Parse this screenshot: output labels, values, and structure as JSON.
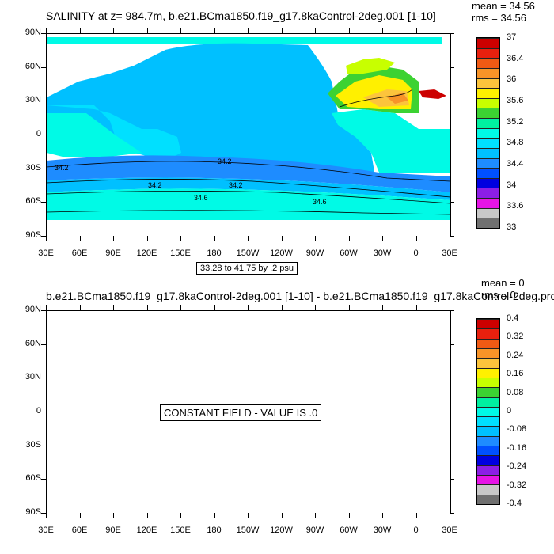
{
  "panel1": {
    "title": "SALINITY at z= 984.7m, b.e21.BCma1850.f19_g17.8kaControl-2deg.001 [1-10]",
    "mean": "mean = 34.56",
    "rms": "rms = 34.56",
    "subtitle": "33.28 to 41.75 by .2 psu",
    "lat_labels": [
      "90N",
      "60N",
      "30N",
      "0",
      "30S",
      "60S",
      "90S"
    ],
    "lon_labels": [
      "30E",
      "60E",
      "90E",
      "120E",
      "150E",
      "180",
      "150W",
      "120W",
      "90W",
      "60W",
      "30W",
      "0",
      "30E"
    ],
    "contour_labels": [
      "34.2",
      "34.2",
      "34.2",
      "34.2",
      "34.6",
      "34.6"
    ],
    "colorbar": {
      "labels": [
        "37",
        "36.4",
        "36",
        "35.6",
        "35.2",
        "34.8",
        "34.4",
        "34",
        "33.6",
        "33"
      ],
      "colors": [
        "#cc0000",
        "#e8200e",
        "#f05a14",
        "#f89428",
        "#fcc43c",
        "#fff000",
        "#c8ff00",
        "#3cd232",
        "#00f0a0",
        "#00fae6",
        "#00e0ff",
        "#00c0ff",
        "#1e8cff",
        "#0050ff",
        "#0000e0",
        "#8c1ee6",
        "#e614e6",
        "#c8c8c8",
        "#707070"
      ]
    }
  },
  "panel2": {
    "title": "b.e21.BCma1850.f19_g17.8kaControl-2deg.001 [1-10] - b.e21.BCma1850.f19_g17.8kaControl-2deg.pro",
    "mean": "mean = 0",
    "rms": "rms = 0",
    "constant_text": "CONSTANT FIELD - VALUE IS .0",
    "lat_labels": [
      "90N",
      "60N",
      "30N",
      "0",
      "30S",
      "60S",
      "90S"
    ],
    "lon_labels": [
      "30E",
      "60E",
      "90E",
      "120E",
      "150E",
      "180",
      "150W",
      "120W",
      "90W",
      "60W",
      "30W",
      "0",
      "30E"
    ],
    "colorbar": {
      "labels": [
        "0.4",
        "0.32",
        "0.24",
        "0.16",
        "0.08",
        "0",
        "-0.08",
        "-0.16",
        "-0.24",
        "-0.32",
        "-0.4"
      ],
      "colors": [
        "#cc0000",
        "#e8200e",
        "#f05a14",
        "#f89428",
        "#fcc43c",
        "#fff000",
        "#c8ff00",
        "#3cd232",
        "#00f0a0",
        "#00fae6",
        "#00e0ff",
        "#00c0ff",
        "#1e8cff",
        "#0050ff",
        "#0000e0",
        "#8c1ee6",
        "#e614e6",
        "#c8c8c8",
        "#707070"
      ]
    }
  }
}
